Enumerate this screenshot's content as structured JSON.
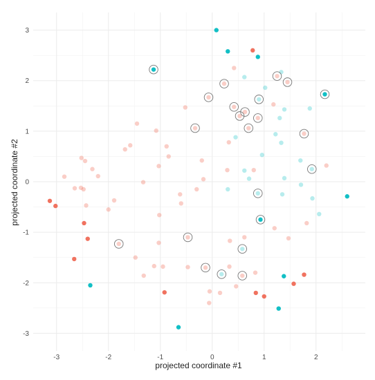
{
  "chart_data": {
    "type": "scatter",
    "xlabel": "projected coordinate #1",
    "ylabel": "projected coordinate #2",
    "xlim": [
      -3.45,
      2.95
    ],
    "ylim": [
      -3.35,
      3.35
    ],
    "x_ticks": [
      -3,
      -2,
      -1,
      0,
      1,
      2
    ],
    "y_ticks": [
      -3,
      -2,
      -1,
      0,
      1,
      2,
      3
    ],
    "grid": true,
    "legend": "none",
    "colors": {
      "red": "#f0725f",
      "teal": "#12bfc5",
      "ring": "#777777"
    },
    "points": [
      {
        "x": 0.08,
        "y": 3.0,
        "c": "teal",
        "a": 1
      },
      {
        "x": 0.78,
        "y": 2.6,
        "c": "red",
        "a": 1
      },
      {
        "x": 0.3,
        "y": 2.58,
        "c": "teal",
        "a": 1
      },
      {
        "x": 0.88,
        "y": 2.47,
        "c": "teal",
        "a": 1
      },
      {
        "x": -1.13,
        "y": 2.22,
        "c": "teal",
        "a": 1,
        "ring": true
      },
      {
        "x": 0.42,
        "y": 2.25,
        "c": "red",
        "a": 0.35
      },
      {
        "x": 0.62,
        "y": 2.07,
        "c": "teal",
        "a": 0.3
      },
      {
        "x": 1.25,
        "y": 2.09,
        "c": "red",
        "a": 0.35,
        "ring": true
      },
      {
        "x": 1.33,
        "y": 2.17,
        "c": "teal",
        "a": 0.3
      },
      {
        "x": 0.23,
        "y": 1.94,
        "c": "red",
        "a": 0.35,
        "ring": true
      },
      {
        "x": 1.45,
        "y": 1.97,
        "c": "red",
        "a": 0.35,
        "ring": true
      },
      {
        "x": 1.02,
        "y": 1.86,
        "c": "teal",
        "a": 0.3
      },
      {
        "x": 2.17,
        "y": 1.73,
        "c": "teal",
        "a": 1,
        "ring": true
      },
      {
        "x": -0.07,
        "y": 1.67,
        "c": "red",
        "a": 0.35,
        "ring": true
      },
      {
        "x": 0.9,
        "y": 1.63,
        "c": "teal",
        "a": 0.3,
        "ring": true
      },
      {
        "x": -0.52,
        "y": 1.47,
        "c": "red",
        "a": 0.35
      },
      {
        "x": 0.42,
        "y": 1.48,
        "c": "red",
        "a": 0.35,
        "ring": true
      },
      {
        "x": 1.18,
        "y": 1.53,
        "c": "red",
        "a": 0.35
      },
      {
        "x": 1.39,
        "y": 1.43,
        "c": "teal",
        "a": 0.3
      },
      {
        "x": 1.88,
        "y": 1.45,
        "c": "teal",
        "a": 0.3
      },
      {
        "x": 0.63,
        "y": 1.38,
        "c": "red",
        "a": 0.35,
        "ring": true
      },
      {
        "x": 0.53,
        "y": 1.3,
        "c": "red",
        "a": 0.35,
        "ring": true
      },
      {
        "x": 0.88,
        "y": 1.26,
        "c": "red",
        "a": 0.35,
        "ring": true
      },
      {
        "x": 1.3,
        "y": 1.26,
        "c": "teal",
        "a": 0.3
      },
      {
        "x": -1.45,
        "y": 1.15,
        "c": "red",
        "a": 0.35
      },
      {
        "x": -0.33,
        "y": 1.06,
        "c": "red",
        "a": 0.35,
        "ring": true
      },
      {
        "x": 0.7,
        "y": 1.06,
        "c": "red",
        "a": 0.35,
        "ring": true
      },
      {
        "x": -1.08,
        "y": 1.01,
        "c": "red",
        "a": 0.35
      },
      {
        "x": 1.77,
        "y": 0.95,
        "c": "red",
        "a": 0.35,
        "ring": true
      },
      {
        "x": 1.22,
        "y": 0.94,
        "c": "teal",
        "a": 0.3
      },
      {
        "x": 0.45,
        "y": 0.88,
        "c": "teal",
        "a": 0.3
      },
      {
        "x": 0.32,
        "y": 0.78,
        "c": "red",
        "a": 0.35
      },
      {
        "x": 1.33,
        "y": 0.77,
        "c": "teal",
        "a": 0.3
      },
      {
        "x": -1.58,
        "y": 0.72,
        "c": "red",
        "a": 0.35
      },
      {
        "x": -0.88,
        "y": 0.7,
        "c": "red",
        "a": 0.35
      },
      {
        "x": -1.68,
        "y": 0.64,
        "c": "red",
        "a": 0.35
      },
      {
        "x": 0.96,
        "y": 0.53,
        "c": "teal",
        "a": 0.3
      },
      {
        "x": -0.84,
        "y": 0.5,
        "c": "red",
        "a": 0.35
      },
      {
        "x": -2.52,
        "y": 0.47,
        "c": "red",
        "a": 0.35
      },
      {
        "x": -2.45,
        "y": 0.41,
        "c": "red",
        "a": 0.35
      },
      {
        "x": -0.2,
        "y": 0.42,
        "c": "red",
        "a": 0.35
      },
      {
        "x": 1.7,
        "y": 0.42,
        "c": "teal",
        "a": 0.3
      },
      {
        "x": -1.03,
        "y": 0.31,
        "c": "red",
        "a": 0.35
      },
      {
        "x": -2.31,
        "y": 0.25,
        "c": "red",
        "a": 0.35
      },
      {
        "x": 0.29,
        "y": 0.23,
        "c": "red",
        "a": 0.35
      },
      {
        "x": 0.8,
        "y": 0.23,
        "c": "red",
        "a": 0.35
      },
      {
        "x": 0.62,
        "y": 0.22,
        "c": "teal",
        "a": 0.3
      },
      {
        "x": 1.92,
        "y": 0.25,
        "c": "teal",
        "a": 0.3,
        "ring": true
      },
      {
        "x": 2.2,
        "y": 0.32,
        "c": "red",
        "a": 0.35
      },
      {
        "x": -2.2,
        "y": 0.11,
        "c": "red",
        "a": 0.35
      },
      {
        "x": -2.85,
        "y": 0.1,
        "c": "red",
        "a": 0.35
      },
      {
        "x": 0.71,
        "y": 0.06,
        "c": "teal",
        "a": 0.3
      },
      {
        "x": -0.17,
        "y": 0.05,
        "c": "red",
        "a": 0.35
      },
      {
        "x": 1.39,
        "y": 0.07,
        "c": "teal",
        "a": 0.3
      },
      {
        "x": -1.33,
        "y": -0.01,
        "c": "red",
        "a": 0.35
      },
      {
        "x": 1.71,
        "y": -0.06,
        "c": "teal",
        "a": 0.3
      },
      {
        "x": -2.65,
        "y": -0.13,
        "c": "red",
        "a": 0.35
      },
      {
        "x": -2.53,
        "y": -0.12,
        "c": "red",
        "a": 0.35
      },
      {
        "x": -2.48,
        "y": -0.15,
        "c": "red",
        "a": 0.35
      },
      {
        "x": -0.3,
        "y": -0.15,
        "c": "red",
        "a": 0.35
      },
      {
        "x": 0.3,
        "y": -0.15,
        "c": "teal",
        "a": 0.3
      },
      {
        "x": -0.62,
        "y": -0.25,
        "c": "red",
        "a": 0.35
      },
      {
        "x": 0.88,
        "y": -0.23,
        "c": "teal",
        "a": 0.3,
        "ring": true
      },
      {
        "x": 1.35,
        "y": -0.25,
        "c": "teal",
        "a": 0.3
      },
      {
        "x": -3.13,
        "y": -0.38,
        "c": "red",
        "a": 1
      },
      {
        "x": -1.89,
        "y": -0.37,
        "c": "red",
        "a": 0.35
      },
      {
        "x": 1.93,
        "y": -0.33,
        "c": "teal",
        "a": 0.3
      },
      {
        "x": 2.6,
        "y": -0.29,
        "c": "teal",
        "a": 1
      },
      {
        "x": -3.02,
        "y": -0.48,
        "c": "red",
        "a": 1
      },
      {
        "x": -0.6,
        "y": -0.43,
        "c": "red",
        "a": 0.35
      },
      {
        "x": -2.43,
        "y": -0.47,
        "c": "red",
        "a": 0.35
      },
      {
        "x": -2.0,
        "y": -0.55,
        "c": "red",
        "a": 0.35
      },
      {
        "x": 2.06,
        "y": -0.64,
        "c": "teal",
        "a": 0.3
      },
      {
        "x": -1.02,
        "y": -0.66,
        "c": "red",
        "a": 0.35
      },
      {
        "x": 0.93,
        "y": -0.75,
        "c": "teal",
        "a": 1,
        "ring": true
      },
      {
        "x": 1.82,
        "y": -0.82,
        "c": "red",
        "a": 0.35
      },
      {
        "x": -2.47,
        "y": -0.82,
        "c": "red",
        "a": 1
      },
      {
        "x": 1.2,
        "y": -0.92,
        "c": "red",
        "a": 0.35
      },
      {
        "x": -2.4,
        "y": -1.13,
        "c": "red",
        "a": 1
      },
      {
        "x": -0.47,
        "y": -1.1,
        "c": "red",
        "a": 0.35,
        "ring": true
      },
      {
        "x": 0.62,
        "y": -1.1,
        "c": "red",
        "a": 0.35
      },
      {
        "x": 1.47,
        "y": -1.12,
        "c": "red",
        "a": 0.35
      },
      {
        "x": -1.03,
        "y": -1.21,
        "c": "red",
        "a": 0.35
      },
      {
        "x": 0.34,
        "y": -1.17,
        "c": "red",
        "a": 0.35
      },
      {
        "x": -1.8,
        "y": -1.23,
        "c": "red",
        "a": 0.35,
        "ring": true
      },
      {
        "x": 0.58,
        "y": -1.33,
        "c": "teal",
        "a": 0.3,
        "ring": true
      },
      {
        "x": -1.48,
        "y": -1.5,
        "c": "red",
        "a": 0.35
      },
      {
        "x": -2.66,
        "y": -1.53,
        "c": "red",
        "a": 1
      },
      {
        "x": -1.12,
        "y": -1.67,
        "c": "red",
        "a": 0.35
      },
      {
        "x": -0.95,
        "y": -1.68,
        "c": "red",
        "a": 0.35
      },
      {
        "x": -0.47,
        "y": -1.69,
        "c": "red",
        "a": 0.35
      },
      {
        "x": -0.13,
        "y": -1.7,
        "c": "red",
        "a": 0.35,
        "ring": true
      },
      {
        "x": 0.33,
        "y": -1.68,
        "c": "red",
        "a": 0.35
      },
      {
        "x": -1.32,
        "y": -1.86,
        "c": "red",
        "a": 0.35
      },
      {
        "x": 0.18,
        "y": -1.83,
        "c": "teal",
        "a": 0.3,
        "ring": true
      },
      {
        "x": 0.58,
        "y": -1.86,
        "c": "red",
        "a": 0.35,
        "ring": true
      },
      {
        "x": 0.83,
        "y": -1.8,
        "c": "red",
        "a": 0.35
      },
      {
        "x": 1.38,
        "y": -1.87,
        "c": "teal",
        "a": 1
      },
      {
        "x": 1.77,
        "y": -1.84,
        "c": "red",
        "a": 1
      },
      {
        "x": 1.57,
        "y": -2.02,
        "c": "red",
        "a": 1
      },
      {
        "x": -2.35,
        "y": -2.05,
        "c": "teal",
        "a": 1
      },
      {
        "x": 0.46,
        "y": -2.07,
        "c": "red",
        "a": 0.35
      },
      {
        "x": -0.05,
        "y": -2.17,
        "c": "red",
        "a": 0.35
      },
      {
        "x": 0.15,
        "y": -2.2,
        "c": "red",
        "a": 0.35
      },
      {
        "x": -0.92,
        "y": -2.19,
        "c": "red",
        "a": 1
      },
      {
        "x": 0.84,
        "y": -2.2,
        "c": "red",
        "a": 1
      },
      {
        "x": 1.0,
        "y": -2.27,
        "c": "red",
        "a": 1
      },
      {
        "x": -0.06,
        "y": -2.4,
        "c": "red",
        "a": 0.35
      },
      {
        "x": 1.28,
        "y": -2.51,
        "c": "teal",
        "a": 1
      },
      {
        "x": -0.65,
        "y": -2.88,
        "c": "teal",
        "a": 1
      }
    ]
  }
}
